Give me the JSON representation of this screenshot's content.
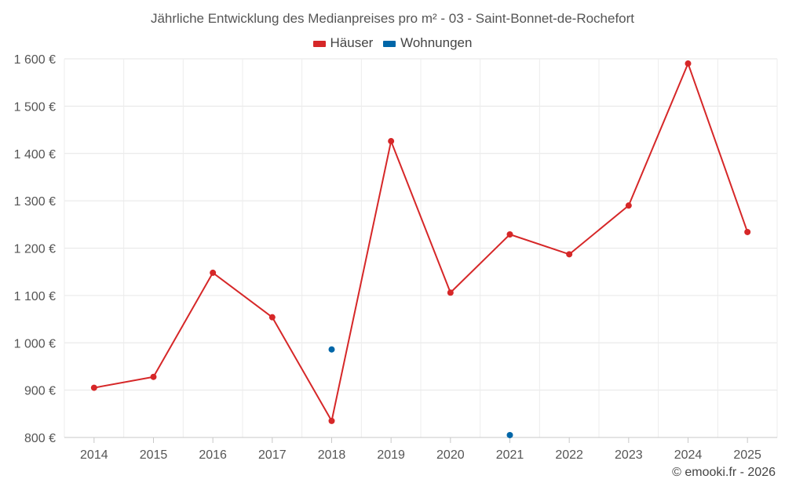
{
  "chart_data": {
    "type": "line",
    "title": "Jährliche Entwicklung des Medianpreises pro m² - 03 - Saint-Bonnet-de-Rochefort",
    "categories": [
      "2014",
      "2015",
      "2016",
      "2017",
      "2018",
      "2019",
      "2020",
      "2021",
      "2022",
      "2023",
      "2024",
      "2025"
    ],
    "series": [
      {
        "name": "Häuser",
        "color": "#d62728",
        "values": [
          905,
          928,
          1148,
          1054,
          835,
          1426,
          1106,
          1229,
          1187,
          1290,
          1590,
          1234
        ]
      },
      {
        "name": "Wohnungen",
        "color": "#0066a8",
        "values": [
          null,
          null,
          null,
          null,
          986,
          null,
          null,
          805,
          null,
          null,
          null,
          null
        ]
      }
    ],
    "ylim": [
      800,
      1600
    ],
    "yticks": [
      800,
      900,
      1000,
      1100,
      1200,
      1300,
      1400,
      1500,
      1600
    ],
    "ytick_labels": [
      "800 €",
      "900 €",
      "1 000 €",
      "1 100 €",
      "1 200 €",
      "1 300 €",
      "1 400 €",
      "1 500 €",
      "1 600 €"
    ],
    "xlabel": "",
    "ylabel": "",
    "grid": true,
    "legend": "top-center"
  },
  "credit": "© emooki.fr - 2026"
}
